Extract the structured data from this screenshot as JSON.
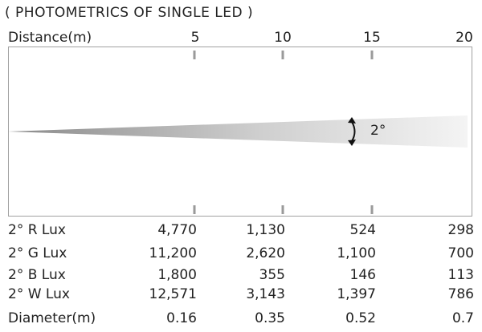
{
  "title": "( PHOTOMETRICS OF SINGLE LED )",
  "distance_label": "Distance(m)",
  "distances": [
    "5",
    "10",
    "15",
    "20"
  ],
  "beam_angle": "2°",
  "rows": [
    {
      "label": "2° R Lux",
      "values": [
        "4,770",
        "1,130",
        "524",
        "298"
      ]
    },
    {
      "label": "2° G Lux",
      "values": [
        "11,200",
        "2,620",
        "1,100",
        "700"
      ]
    },
    {
      "label": "2° B Lux",
      "values": [
        "1,800",
        "355",
        "146",
        "113"
      ]
    },
    {
      "label": "2° W Lux",
      "values": [
        "12,571",
        "3,143",
        "1,397",
        "786"
      ]
    },
    {
      "label": "Diameter(m)",
      "values": [
        "0.16",
        "0.35",
        "0.52",
        "0.7"
      ]
    }
  ],
  "colors": {
    "beam_start": "#8a8a8a",
    "beam_end": "#f4f4f4",
    "frame": "#a0a0a0",
    "tick": "#9a9a9a"
  },
  "icons": {
    "angle": "double-arrow-arc-icon"
  }
}
